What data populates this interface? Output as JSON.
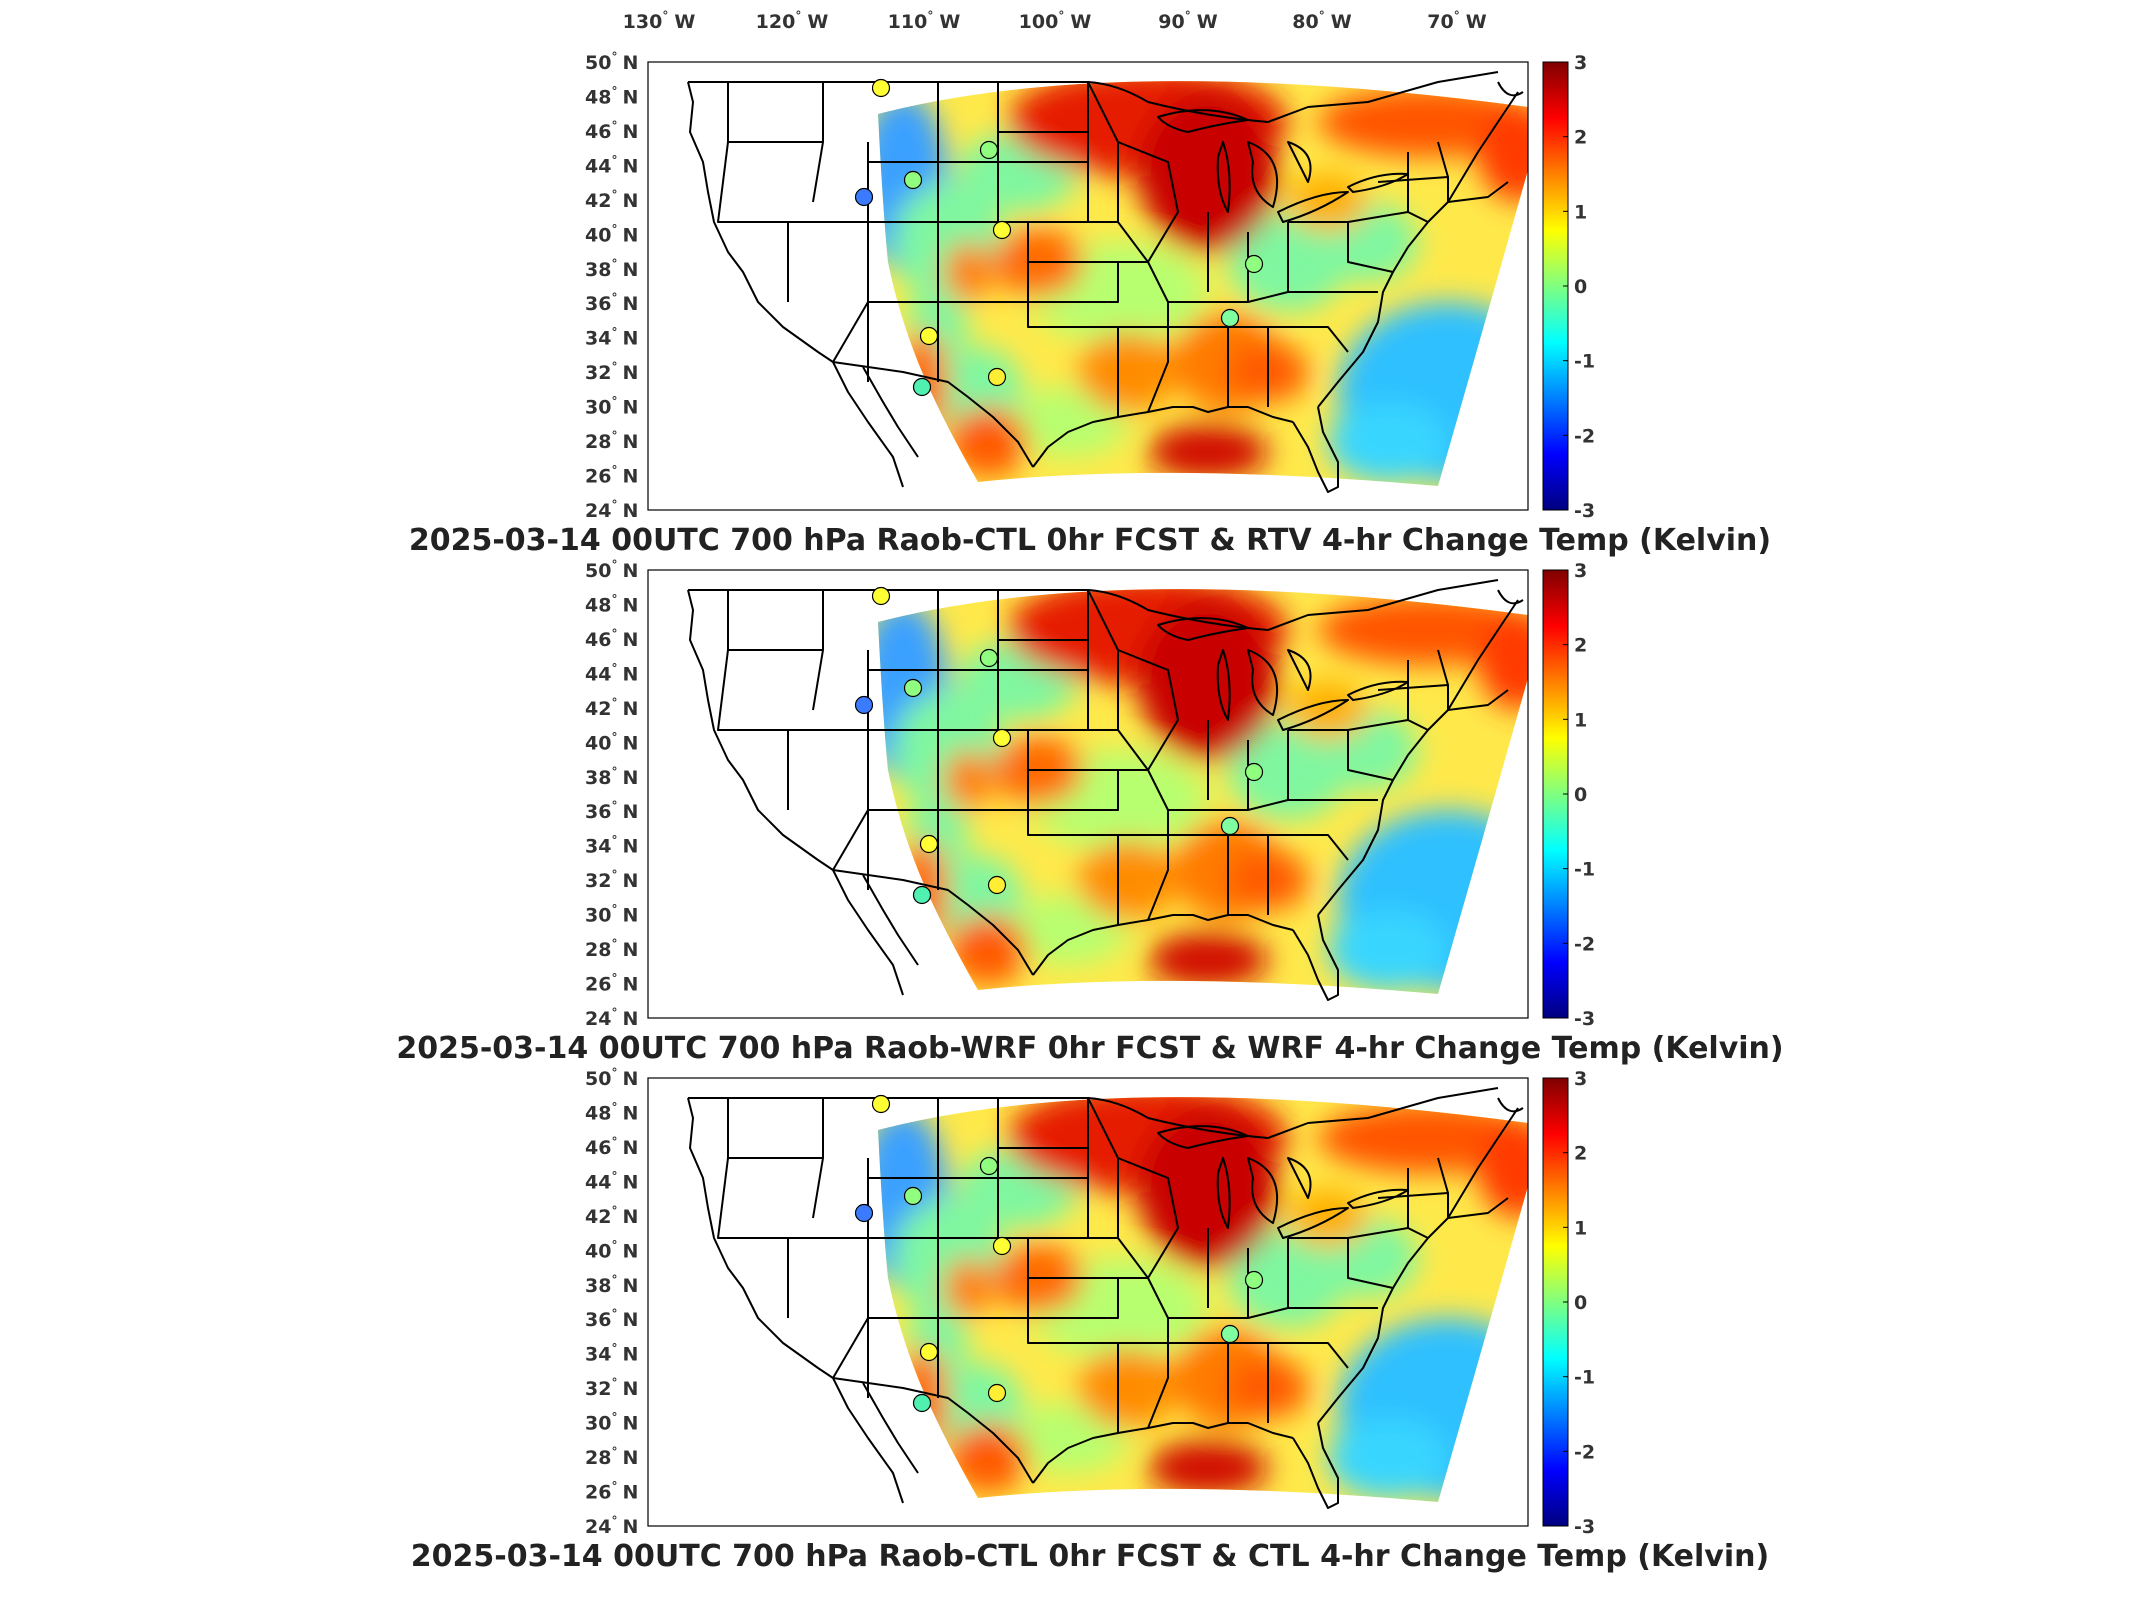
{
  "figure": {
    "lon_ticks": [
      "130",
      "120",
      "110",
      "100",
      "90",
      "80",
      "70"
    ],
    "lon_suffix": "W",
    "lat_ticks": [
      "50",
      "48",
      "46",
      "44",
      "42",
      "40",
      "38",
      "36",
      "34",
      "32",
      "30",
      "28",
      "26",
      "24"
    ],
    "lat_suffix": "N",
    "degree_symbol": "°",
    "colorbar_ticks": [
      "3",
      "2",
      "1",
      "0",
      "-1",
      "-2",
      "-3"
    ],
    "colormap": [
      "#00007f",
      "#0000ff",
      "#0080ff",
      "#00ffff",
      "#80ff80",
      "#ffff00",
      "#ff8000",
      "#ff0000",
      "#7f0000"
    ],
    "panels": [
      {
        "title": "2025-03-14 00UTC 700 hPa Raob-CTL 0hr FCST & RTV 4-hr Change Temp (Kelvin)"
      },
      {
        "title": "2025-03-14 00UTC 700 hPa Raob-WRF 0hr FCST & WRF 4-hr Change Temp (Kelvin)"
      },
      {
        "title": "2025-03-14 00UTC 700 hPa Raob-CTL 0hr FCST & CTL 4-hr Change Temp (Kelvin)"
      }
    ]
  },
  "chart_data": {
    "type": "heatmap",
    "variable": "4-hr Change Temp",
    "units": "Kelvin",
    "level": "700 hPa",
    "valid_time": "2025-03-14 00UTC",
    "lon_range": [
      -135,
      -65
    ],
    "lat_range": [
      24,
      50
    ],
    "color_range": [
      -3,
      3
    ],
    "raob_stations": [
      {
        "lon": -107.8,
        "lat": 48.6
      },
      {
        "lon": -104.4,
        "lat": 44.0
      },
      {
        "lon": -98.4,
        "lat": 45.5
      },
      {
        "lon": -108.5,
        "lat": 43.0
      },
      {
        "lon": -97.0,
        "lat": 41.5
      },
      {
        "lon": -86.0,
        "lat": 39.7
      },
      {
        "lon": -86.7,
        "lat": 36.2
      },
      {
        "lon": -101.7,
        "lat": 35.2
      },
      {
        "lon": -97.3,
        "lat": 32.8
      },
      {
        "lon": -102.2,
        "lat": 31.9
      }
    ]
  }
}
